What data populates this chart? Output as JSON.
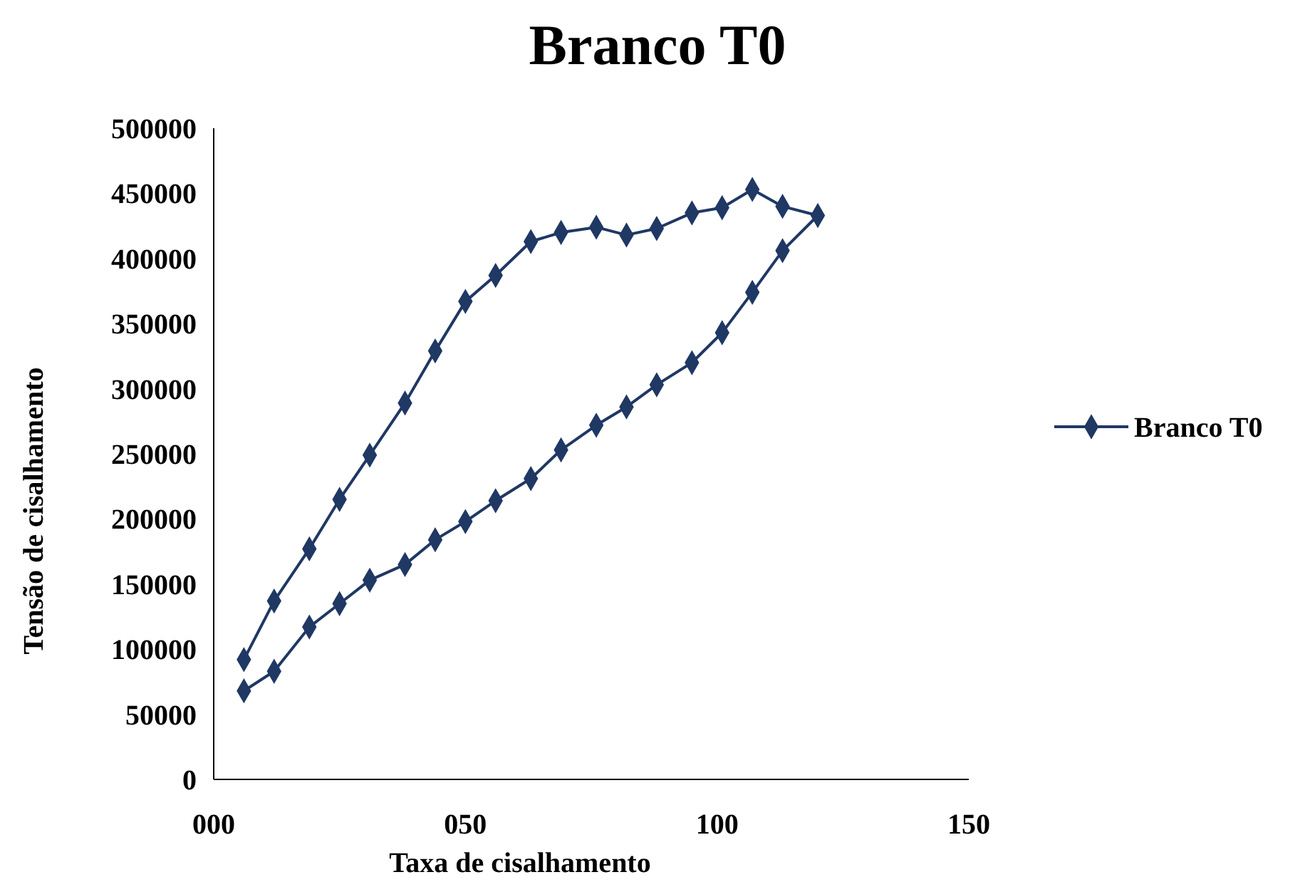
{
  "chart_data": {
    "type": "line",
    "title": "Branco T0",
    "xlabel": "Taxa de cisalhamento",
    "ylabel": "Tensão de cisalhamento",
    "xlim": [
      0,
      150
    ],
    "xticks": [
      {
        "value": 0,
        "label": "000"
      },
      {
        "value": 50,
        "label": "050"
      },
      100,
      150
    ],
    "ylim": [
      0,
      500000
    ],
    "yticks": [
      0,
      50000,
      100000,
      150000,
      200000,
      250000,
      300000,
      350000,
      400000,
      450000,
      500000
    ],
    "grid": false,
    "legend": "right",
    "marker": "diamond",
    "line_style": "solid",
    "series": [
      {
        "name": "Branco T0",
        "color": "#1f3864",
        "x": [
          6,
          12,
          19,
          25,
          31,
          38,
          44,
          50,
          56,
          63,
          69,
          76,
          82,
          88,
          95,
          101,
          107,
          113,
          120,
          113,
          107,
          101,
          95,
          88,
          82,
          76,
          69,
          63,
          56,
          50,
          44,
          38,
          31,
          25,
          19,
          12,
          6
        ],
        "values": [
          92000,
          137000,
          177000,
          215000,
          249000,
          289000,
          329000,
          367000,
          387000,
          413000,
          420000,
          424000,
          418000,
          423000,
          435000,
          439000,
          453000,
          440000,
          433000,
          406000,
          374000,
          343000,
          320000,
          303000,
          286000,
          272000,
          253000,
          231000,
          214000,
          198000,
          184000,
          165000,
          153000,
          135000,
          117000,
          83000,
          68000
        ]
      }
    ]
  }
}
